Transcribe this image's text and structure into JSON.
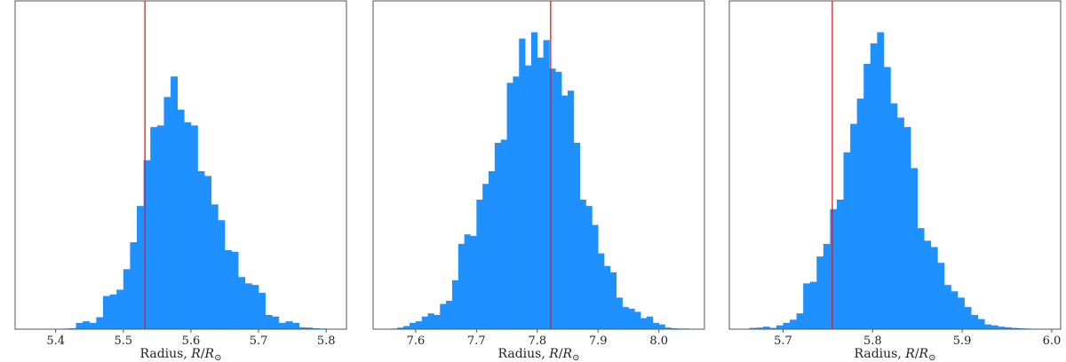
{
  "chart_data": [
    {
      "type": "histogram",
      "xlabel": "Radius, R/R⊙",
      "xlim": [
        5.34,
        5.83
      ],
      "xticks": [
        5.4,
        5.5,
        5.6,
        5.7,
        5.8
      ],
      "xtick_labels": [
        "5.4",
        "5.5",
        "5.6",
        "5.7",
        "5.8"
      ],
      "reference_line_x": 5.532,
      "bin_width": 0.01,
      "bins": [
        [
          5.38,
          0.001
        ],
        [
          5.39,
          0.001
        ],
        [
          5.4,
          0.001
        ],
        [
          5.41,
          0.002
        ],
        [
          5.42,
          0.003
        ],
        [
          5.43,
          0.02
        ],
        [
          5.44,
          0.025
        ],
        [
          5.45,
          0.02
        ],
        [
          5.46,
          0.038
        ],
        [
          5.47,
          0.105
        ],
        [
          5.48,
          0.11
        ],
        [
          5.49,
          0.125
        ],
        [
          5.5,
          0.19
        ],
        [
          5.51,
          0.275
        ],
        [
          5.52,
          0.39
        ],
        [
          5.53,
          0.535
        ],
        [
          5.54,
          0.64
        ],
        [
          5.55,
          0.645
        ],
        [
          5.56,
          0.735
        ],
        [
          5.57,
          0.8
        ],
        [
          5.58,
          0.695
        ],
        [
          5.59,
          0.655
        ],
        [
          5.6,
          0.645
        ],
        [
          5.61,
          0.5
        ],
        [
          5.62,
          0.485
        ],
        [
          5.63,
          0.395
        ],
        [
          5.64,
          0.345
        ],
        [
          5.65,
          0.25
        ],
        [
          5.66,
          0.245
        ],
        [
          5.67,
          0.165
        ],
        [
          5.68,
          0.145
        ],
        [
          5.69,
          0.14
        ],
        [
          5.7,
          0.115
        ],
        [
          5.71,
          0.045
        ],
        [
          5.72,
          0.04
        ],
        [
          5.73,
          0.02
        ],
        [
          5.74,
          0.025
        ],
        [
          5.75,
          0.02
        ],
        [
          5.76,
          0.006
        ],
        [
          5.77,
          0.005
        ],
        [
          5.78,
          0.003
        ],
        [
          5.79,
          0.002
        ],
        [
          5.8,
          0.001
        ]
      ]
    },
    {
      "type": "histogram",
      "xlabel": "Radius, R/R⊙",
      "xlim": [
        7.53,
        8.075
      ],
      "xticks": [
        7.6,
        7.7,
        7.8,
        7.9,
        8.0
      ],
      "xtick_labels": [
        "7.6",
        "7.7",
        "7.8",
        "7.9",
        "8.0"
      ],
      "reference_line_x": 7.822,
      "bin_width": 0.01,
      "bins": [
        [
          7.56,
          0.002
        ],
        [
          7.57,
          0.005
        ],
        [
          7.58,
          0.01
        ],
        [
          7.59,
          0.02
        ],
        [
          7.6,
          0.025
        ],
        [
          7.61,
          0.04
        ],
        [
          7.62,
          0.05
        ],
        [
          7.63,
          0.045
        ],
        [
          7.64,
          0.08
        ],
        [
          7.65,
          0.09
        ],
        [
          7.66,
          0.155
        ],
        [
          7.67,
          0.27
        ],
        [
          7.68,
          0.3
        ],
        [
          7.69,
          0.295
        ],
        [
          7.7,
          0.41
        ],
        [
          7.71,
          0.46
        ],
        [
          7.72,
          0.5
        ],
        [
          7.73,
          0.59
        ],
        [
          7.74,
          0.6
        ],
        [
          7.75,
          0.78
        ],
        [
          7.76,
          0.8
        ],
        [
          7.77,
          0.92
        ],
        [
          7.78,
          0.835
        ],
        [
          7.79,
          0.94
        ],
        [
          7.8,
          0.86
        ],
        [
          7.81,
          0.915
        ],
        [
          7.82,
          0.825
        ],
        [
          7.83,
          0.815
        ],
        [
          7.84,
          0.74
        ],
        [
          7.85,
          0.755
        ],
        [
          7.86,
          0.59
        ],
        [
          7.87,
          0.41
        ],
        [
          7.88,
          0.39
        ],
        [
          7.89,
          0.33
        ],
        [
          7.9,
          0.24
        ],
        [
          7.91,
          0.2
        ],
        [
          7.92,
          0.18
        ],
        [
          7.93,
          0.1
        ],
        [
          7.94,
          0.07
        ],
        [
          7.95,
          0.065
        ],
        [
          7.96,
          0.055
        ],
        [
          7.97,
          0.035
        ],
        [
          7.98,
          0.04
        ],
        [
          7.99,
          0.02
        ],
        [
          8.0,
          0.015
        ],
        [
          8.01,
          0.005
        ],
        [
          8.02,
          0.003
        ],
        [
          8.03,
          0.002
        ],
        [
          8.04,
          0.002
        ],
        [
          8.05,
          0.001
        ]
      ]
    },
    {
      "type": "histogram",
      "xlabel": "Radius, R/R⊙",
      "xlim": [
        5.64,
        6.01
      ],
      "xticks": [
        5.7,
        5.8,
        5.9,
        6.0
      ],
      "xtick_labels": [
        "5.7",
        "5.8",
        "5.9",
        "6.0"
      ],
      "reference_line_x": 5.755,
      "bin_width": 0.0075,
      "bins": [
        [
          5.6625,
          0.004
        ],
        [
          5.67,
          0.005
        ],
        [
          5.6775,
          0.008
        ],
        [
          5.685,
          0.004
        ],
        [
          5.6925,
          0.012
        ],
        [
          5.7,
          0.02
        ],
        [
          5.7075,
          0.03
        ],
        [
          5.715,
          0.05
        ],
        [
          5.7225,
          0.145
        ],
        [
          5.73,
          0.15
        ],
        [
          5.7375,
          0.23
        ],
        [
          5.745,
          0.27
        ],
        [
          5.7525,
          0.38
        ],
        [
          5.76,
          0.41
        ],
        [
          5.7675,
          0.56
        ],
        [
          5.775,
          0.65
        ],
        [
          5.7825,
          0.73
        ],
        [
          5.79,
          0.84
        ],
        [
          5.7975,
          0.905
        ],
        [
          5.805,
          0.94
        ],
        [
          5.8125,
          0.83
        ],
        [
          5.82,
          0.715
        ],
        [
          5.8275,
          0.67
        ],
        [
          5.835,
          0.64
        ],
        [
          5.8425,
          0.51
        ],
        [
          5.85,
          0.32
        ],
        [
          5.8575,
          0.28
        ],
        [
          5.865,
          0.26
        ],
        [
          5.8725,
          0.21
        ],
        [
          5.88,
          0.14
        ],
        [
          5.8875,
          0.12
        ],
        [
          5.895,
          0.1
        ],
        [
          5.9025,
          0.07
        ],
        [
          5.91,
          0.045
        ],
        [
          5.9175,
          0.032
        ],
        [
          5.925,
          0.015
        ],
        [
          5.9325,
          0.012
        ],
        [
          5.94,
          0.008
        ],
        [
          5.9475,
          0.006
        ],
        [
          5.955,
          0.004
        ],
        [
          5.9625,
          0.003
        ],
        [
          5.97,
          0.002
        ],
        [
          5.9775,
          0.001
        ],
        [
          5.985,
          0.001
        ],
        [
          5.9925,
          0.001
        ]
      ]
    }
  ],
  "colors": {
    "bars": "#1e90ff",
    "reference_line": "#e8171c",
    "frame": "#555555"
  }
}
